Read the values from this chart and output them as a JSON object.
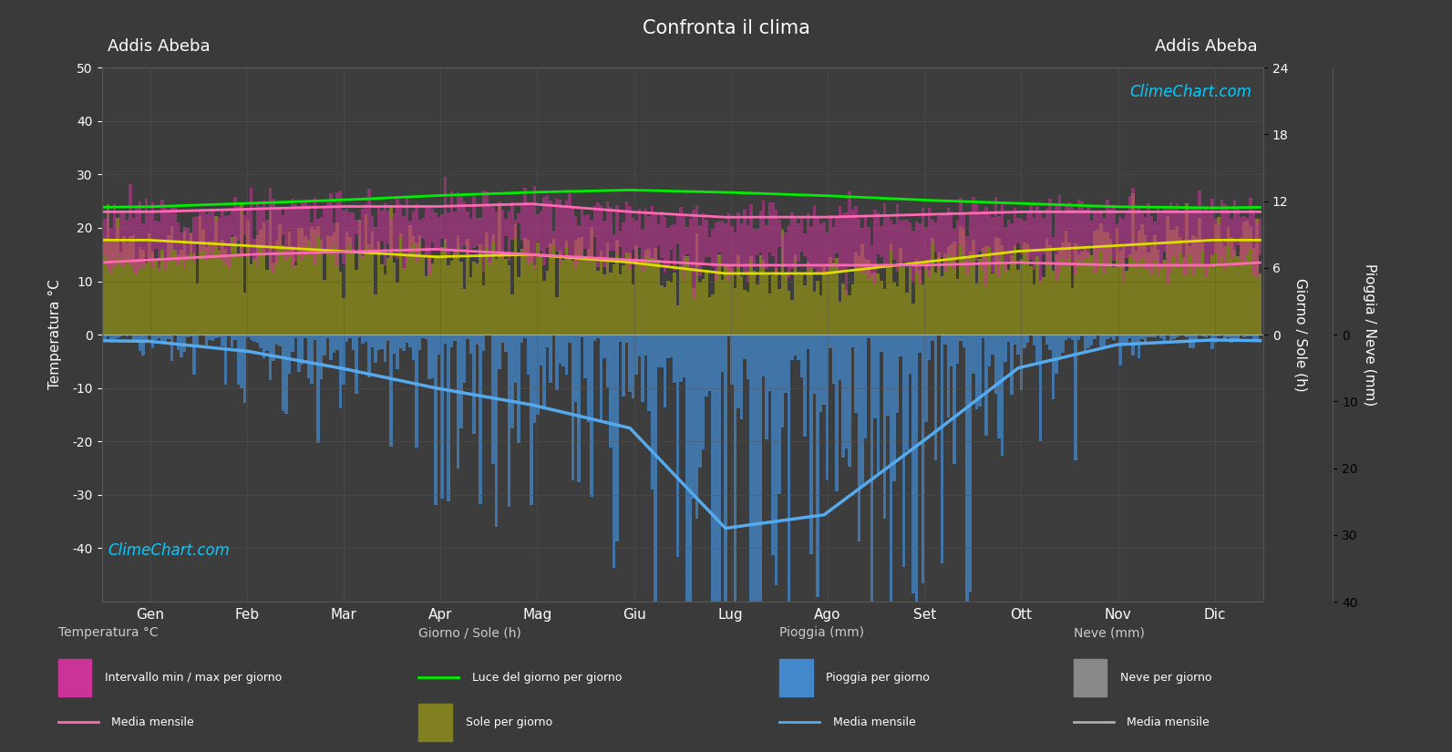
{
  "title": "Confronta il clima",
  "city_left": "Addis Abeba",
  "city_right": "Addis Abeba",
  "watermark": "ClimeChart.com",
  "copyright": "© ClimeChart.com",
  "background_color": "#3a3a3a",
  "plot_bg_color": "#3d3d3d",
  "grid_color": "#555555",
  "months": [
    "Gen",
    "Feb",
    "Mar",
    "Apr",
    "Mag",
    "Giu",
    "Lug",
    "Ago",
    "Set",
    "Ott",
    "Nov",
    "Dic"
  ],
  "temp_max_monthly": [
    23,
    23.5,
    24,
    24,
    24.5,
    23,
    22,
    22,
    22.5,
    23,
    23,
    23
  ],
  "temp_min_monthly": [
    14,
    15,
    15.5,
    16,
    15,
    14,
    13,
    13,
    13,
    13.5,
    13,
    13
  ],
  "sun_day_line": [
    11.5,
    11.8,
    12.1,
    12.5,
    12.8,
    13.0,
    12.8,
    12.5,
    12.1,
    11.8,
    11.5,
    11.4
  ],
  "sunshine_hours": [
    8.5,
    8.0,
    7.5,
    7.0,
    7.2,
    6.5,
    5.5,
    5.5,
    6.5,
    7.5,
    8.0,
    8.5
  ],
  "rain_curve_mm": [
    1.0,
    2.5,
    5.0,
    8.0,
    10.5,
    14.0,
    29.0,
    27.0,
    16.0,
    5.0,
    1.5,
    0.8
  ],
  "rain_daily_noise_scale": 1.5,
  "temp_noise_scale": 1.8,
  "sun_noise_scale": 1.5,
  "temp_min_color": "#ff69b4",
  "temp_fill_color": "#cc3399",
  "sun_fill_color": "#808020",
  "sun_line_color": "#00ee00",
  "sun_yellow_line_color": "#dddd00",
  "rain_fill_color": "#4488cc",
  "rain_line_color": "#55aaee",
  "text_color": "#ffffff",
  "legend_title_color": "#cccccc",
  "temp_ylim": [
    -50,
    50
  ],
  "sun_ylim": [
    0,
    24
  ],
  "rain_ylim_mm": 40
}
